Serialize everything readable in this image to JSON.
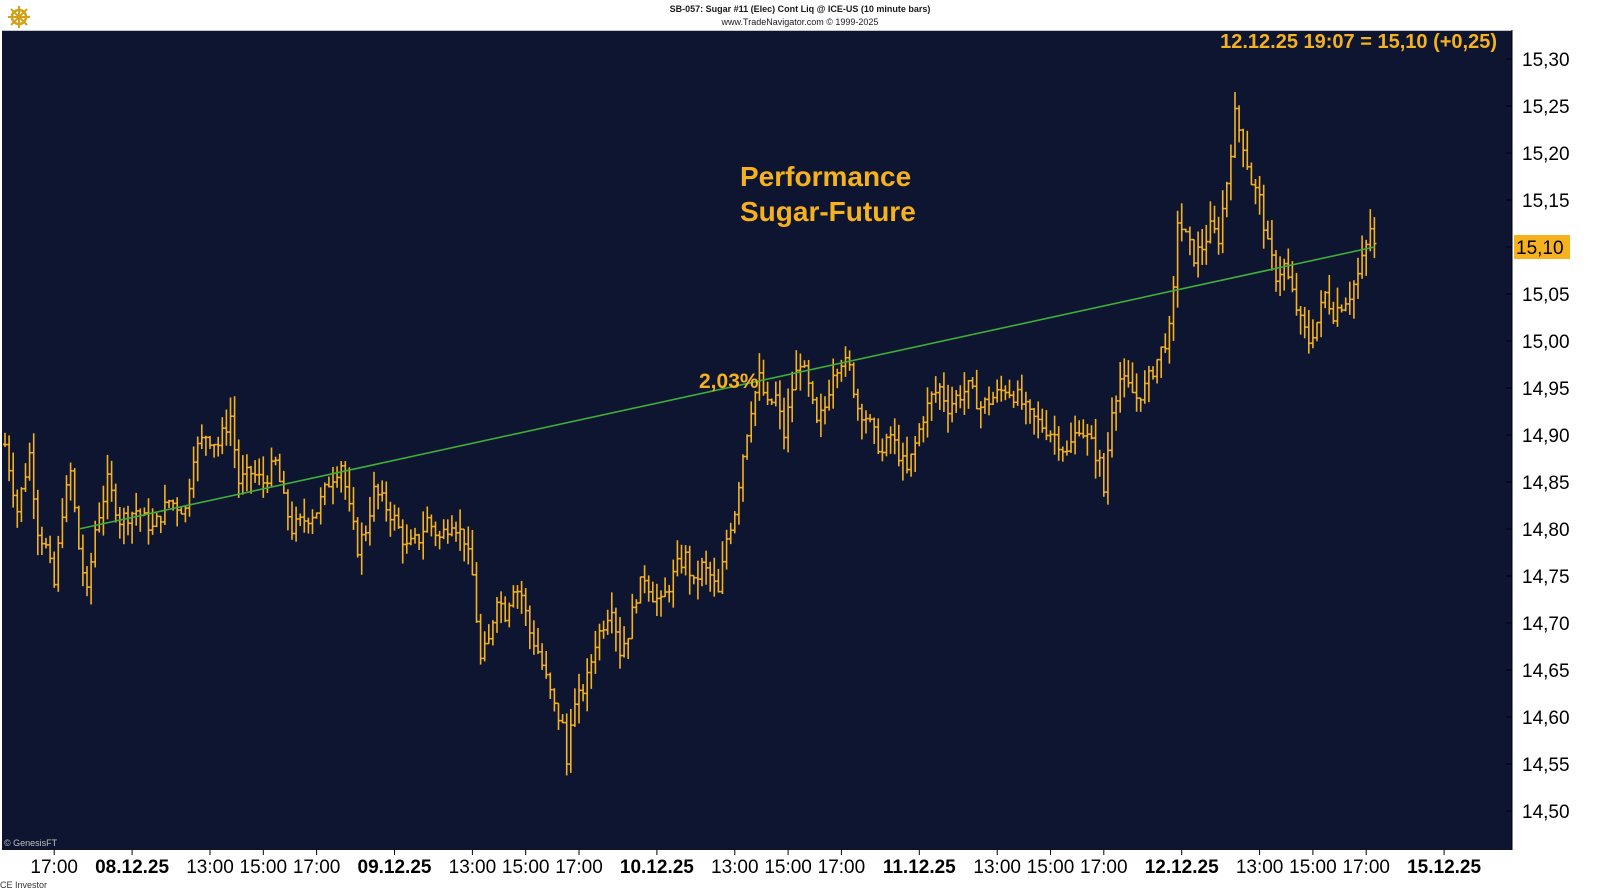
{
  "header": {
    "line1": "SB-057:  Sugar #11 (Elec) Cont Liq @ ICE-US  (10 minute bars)",
    "line2": "www.TradeNavigator.com © 1999-2025"
  },
  "footer": {
    "left_top": "© GenesisFT",
    "left_bottom": "CE Investor"
  },
  "logo_icon": "ship-wheel-logo",
  "colors": {
    "plot_bg": "#0e1530",
    "bar": "#f5b21e",
    "trend": "#3fae3a",
    "price_tag_bg": "#f5b21e",
    "page_bg": "#ffffff"
  },
  "chart_data": {
    "type": "ohlc",
    "title": "Performance\nSugar-Future",
    "last_quote": "12.12.25 19:07 = 15,10 (+0,25)",
    "last_price": 15.1,
    "last_price_label": "15,10",
    "trend_line": {
      "from": 14.8,
      "to": 15.1,
      "label": "2,03%"
    },
    "ylim": [
      14.48,
      15.33
    ],
    "y_ticks": [
      {
        "value": 14.5,
        "label": "14,50"
      },
      {
        "value": 14.55,
        "label": "14,55"
      },
      {
        "value": 14.6,
        "label": "14,60"
      },
      {
        "value": 14.65,
        "label": "14,65"
      },
      {
        "value": 14.7,
        "label": "14,70"
      },
      {
        "value": 14.75,
        "label": "14,75"
      },
      {
        "value": 14.8,
        "label": "14,80"
      },
      {
        "value": 14.85,
        "label": "14,85"
      },
      {
        "value": 14.9,
        "label": "14,90"
      },
      {
        "value": 14.95,
        "label": "14,95"
      },
      {
        "value": 15.0,
        "label": "15,00"
      },
      {
        "value": 15.05,
        "label": "15,05"
      },
      {
        "value": 15.1,
        "label": "15,10"
      },
      {
        "value": 15.15,
        "label": "15,15"
      },
      {
        "value": 15.2,
        "label": "15,20"
      },
      {
        "value": 15.25,
        "label": "15,25"
      },
      {
        "value": 15.3,
        "label": "15,30"
      }
    ],
    "x_ticks": [
      {
        "label": "17:00",
        "bar": 12,
        "bold": false
      },
      {
        "label": "08.12.25",
        "bar": 31,
        "bold": true
      },
      {
        "label": "13:00",
        "bar": 50,
        "bold": false
      },
      {
        "label": "15:00",
        "bar": 63,
        "bold": false
      },
      {
        "label": "17:00",
        "bar": 76,
        "bold": false
      },
      {
        "label": "09.12.25",
        "bar": 95,
        "bold": true
      },
      {
        "label": "13:00",
        "bar": 114,
        "bold": false
      },
      {
        "label": "15:00",
        "bar": 127,
        "bold": false
      },
      {
        "label": "17:00",
        "bar": 140,
        "bold": false
      },
      {
        "label": "10.12.25",
        "bar": 159,
        "bold": true
      },
      {
        "label": "13:00",
        "bar": 178,
        "bold": false
      },
      {
        "label": "15:00",
        "bar": 191,
        "bold": false
      },
      {
        "label": "17:00",
        "bar": 204,
        "bold": false
      },
      {
        "label": "11.12.25",
        "bar": 223,
        "bold": true
      },
      {
        "label": "13:00",
        "bar": 242,
        "bold": false
      },
      {
        "label": "15:00",
        "bar": 255,
        "bold": false
      },
      {
        "label": "17:00",
        "bar": 268,
        "bold": false
      },
      {
        "label": "12.12.25",
        "bar": 287,
        "bold": true
      },
      {
        "label": "13:00",
        "bar": 306,
        "bold": false
      },
      {
        "label": "15:00",
        "bar": 319,
        "bold": false
      },
      {
        "label": "17:00",
        "bar": 332,
        "bold": false
      },
      {
        "label": "15.12.25",
        "bar": 351,
        "bold": true
      }
    ],
    "close_anchors": [
      [
        0,
        14.89
      ],
      [
        3,
        14.82
      ],
      [
        6,
        14.88
      ],
      [
        8,
        14.8
      ],
      [
        10,
        14.78
      ],
      [
        12,
        14.74
      ],
      [
        14,
        14.82
      ],
      [
        16,
        14.86
      ],
      [
        18,
        14.78
      ],
      [
        20,
        14.73
      ],
      [
        22,
        14.8
      ],
      [
        25,
        14.85
      ],
      [
        28,
        14.81
      ],
      [
        32,
        14.82
      ],
      [
        36,
        14.8
      ],
      [
        40,
        14.83
      ],
      [
        44,
        14.82
      ],
      [
        46,
        14.88
      ],
      [
        49,
        14.9
      ],
      [
        52,
        14.89
      ],
      [
        55,
        14.92
      ],
      [
        57,
        14.85
      ],
      [
        60,
        14.86
      ],
      [
        63,
        14.85
      ],
      [
        66,
        14.87
      ],
      [
        68,
        14.83
      ],
      [
        70,
        14.8
      ],
      [
        73,
        14.81
      ],
      [
        76,
        14.82
      ],
      [
        79,
        14.85
      ],
      [
        82,
        14.87
      ],
      [
        84,
        14.82
      ],
      [
        86,
        14.78
      ],
      [
        88,
        14.8
      ],
      [
        90,
        14.84
      ],
      [
        92,
        14.83
      ],
      [
        95,
        14.81
      ],
      [
        98,
        14.78
      ],
      [
        101,
        14.79
      ],
      [
        103,
        14.81
      ],
      [
        106,
        14.79
      ],
      [
        109,
        14.81
      ],
      [
        112,
        14.79
      ],
      [
        114,
        14.75
      ],
      [
        116,
        14.66
      ],
      [
        118,
        14.68
      ],
      [
        120,
        14.73
      ],
      [
        122,
        14.71
      ],
      [
        124,
        14.74
      ],
      [
        126,
        14.73
      ],
      [
        128,
        14.69
      ],
      [
        130,
        14.67
      ],
      [
        132,
        14.64
      ],
      [
        134,
        14.61
      ],
      [
        136,
        14.59
      ],
      [
        137,
        14.55
      ],
      [
        138,
        14.6
      ],
      [
        140,
        14.62
      ],
      [
        142,
        14.64
      ],
      [
        144,
        14.68
      ],
      [
        146,
        14.7
      ],
      [
        148,
        14.72
      ],
      [
        150,
        14.67
      ],
      [
        152,
        14.69
      ],
      [
        154,
        14.73
      ],
      [
        156,
        14.75
      ],
      [
        158,
        14.73
      ],
      [
        160,
        14.72
      ],
      [
        162,
        14.74
      ],
      [
        164,
        14.76
      ],
      [
        166,
        14.77
      ],
      [
        168,
        14.74
      ],
      [
        170,
        14.76
      ],
      [
        172,
        14.75
      ],
      [
        174,
        14.73
      ],
      [
        176,
        14.79
      ],
      [
        178,
        14.82
      ],
      [
        180,
        14.88
      ],
      [
        182,
        14.93
      ],
      [
        184,
        14.96
      ],
      [
        186,
        14.93
      ],
      [
        188,
        14.94
      ],
      [
        190,
        14.9
      ],
      [
        192,
        14.95
      ],
      [
        194,
        14.98
      ],
      [
        196,
        14.95
      ],
      [
        198,
        14.91
      ],
      [
        200,
        14.93
      ],
      [
        202,
        14.97
      ],
      [
        204,
        14.98
      ],
      [
        206,
        14.97
      ],
      [
        208,
        14.93
      ],
      [
        210,
        14.92
      ],
      [
        212,
        14.9
      ],
      [
        214,
        14.88
      ],
      [
        216,
        14.9
      ],
      [
        218,
        14.88
      ],
      [
        220,
        14.86
      ],
      [
        222,
        14.89
      ],
      [
        224,
        14.92
      ],
      [
        226,
        14.94
      ],
      [
        228,
        14.95
      ],
      [
        230,
        14.93
      ],
      [
        232,
        14.94
      ],
      [
        235,
        14.95
      ],
      [
        238,
        14.93
      ],
      [
        241,
        14.94
      ],
      [
        244,
        14.95
      ],
      [
        247,
        14.94
      ],
      [
        250,
        14.92
      ],
      [
        253,
        14.91
      ],
      [
        256,
        14.9
      ],
      [
        259,
        14.88
      ],
      [
        262,
        14.91
      ],
      [
        265,
        14.89
      ],
      [
        267,
        14.87
      ],
      [
        268,
        14.84
      ],
      [
        270,
        14.93
      ],
      [
        272,
        14.96
      ],
      [
        274,
        14.95
      ],
      [
        276,
        14.94
      ],
      [
        278,
        14.95
      ],
      [
        280,
        14.97
      ],
      [
        282,
        14.99
      ],
      [
        284,
        15.01
      ],
      [
        285,
        15.05
      ],
      [
        286,
        15.13
      ],
      [
        288,
        15.11
      ],
      [
        290,
        15.09
      ],
      [
        292,
        15.1
      ],
      [
        294,
        15.12
      ],
      [
        296,
        15.11
      ],
      [
        298,
        15.17
      ],
      [
        300,
        15.24
      ],
      [
        302,
        15.21
      ],
      [
        304,
        15.17
      ],
      [
        306,
        15.15
      ],
      [
        308,
        15.1
      ],
      [
        310,
        15.07
      ],
      [
        312,
        15.08
      ],
      [
        314,
        15.05
      ],
      [
        316,
        15.02
      ],
      [
        318,
        15.0
      ],
      [
        320,
        15.02
      ],
      [
        322,
        15.05
      ],
      [
        324,
        15.03
      ],
      [
        326,
        15.04
      ],
      [
        328,
        15.05
      ],
      [
        330,
        15.07
      ],
      [
        332,
        15.1
      ],
      [
        333,
        15.12
      ],
      [
        334,
        15.1
      ]
    ]
  }
}
